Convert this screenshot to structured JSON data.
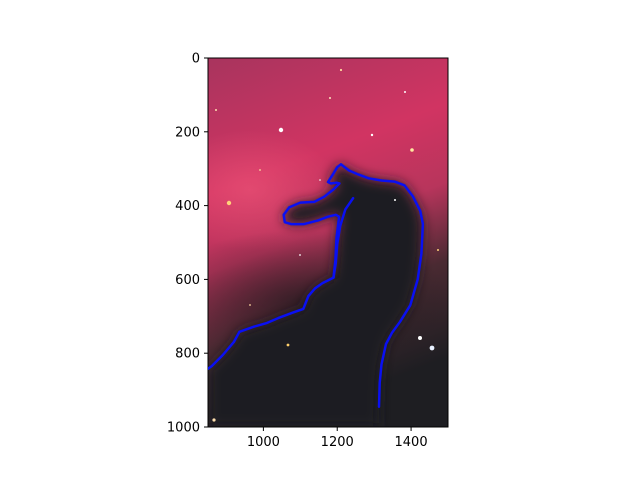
{
  "chart_data": {
    "type": "image-with-contour-overlay",
    "title": "",
    "xlabel": "",
    "ylabel": "",
    "xlim": [
      850,
      1500
    ],
    "ylim": [
      1000,
      0
    ],
    "y_inverted": true,
    "x_ticks": [
      1000,
      1200,
      1400
    ],
    "y_ticks": [
      0,
      200,
      400,
      600,
      800,
      1000
    ],
    "x_tick_labels": [
      "1000",
      "1200",
      "1400"
    ],
    "y_tick_labels": [
      "0",
      "200",
      "400",
      "600",
      "800",
      "1000"
    ],
    "grid": false,
    "legend": "none",
    "background_image": "horsehead-nebula",
    "colors": {
      "contour": "#0a10f2",
      "nebula_top": "#b7325c",
      "nebula_mid": "#d03462",
      "dark_cloud": "#1a1a20"
    },
    "series": [
      {
        "type": "line",
        "points": [
          [
            1313,
            945
          ],
          [
            1315,
            880
          ],
          [
            1320,
            830
          ],
          [
            1332,
            775
          ],
          [
            1348,
            745
          ],
          [
            1370,
            715
          ],
          [
            1398,
            670
          ],
          [
            1418,
            600
          ],
          [
            1428,
            530
          ],
          [
            1432,
            450
          ],
          [
            1425,
            415
          ],
          [
            1405,
            375
          ],
          [
            1382,
            345
          ],
          [
            1355,
            335
          ],
          [
            1320,
            332
          ],
          [
            1285,
            326
          ],
          [
            1258,
            316
          ],
          [
            1232,
            305
          ],
          [
            1210,
            288
          ],
          [
            1200,
            296
          ],
          [
            1188,
            316
          ],
          [
            1175,
            336
          ],
          [
            1183,
            340
          ],
          [
            1198,
            338
          ],
          [
            1206,
            340
          ],
          [
            1190,
            356
          ],
          [
            1165,
            376
          ],
          [
            1138,
            390
          ],
          [
            1100,
            392
          ],
          [
            1070,
            405
          ],
          [
            1055,
            425
          ],
          [
            1058,
            445
          ],
          [
            1075,
            450
          ],
          [
            1110,
            450
          ],
          [
            1148,
            440
          ],
          [
            1175,
            430
          ],
          [
            1196,
            425
          ],
          [
            1205,
            430
          ],
          [
            1198,
            488
          ],
          [
            1195,
            548
          ],
          [
            1190,
            595
          ],
          [
            1160,
            610
          ],
          [
            1140,
            624
          ],
          [
            1122,
            645
          ],
          [
            1108,
            680
          ],
          [
            1080,
            690
          ],
          [
            1040,
            705
          ],
          [
            1010,
            718
          ],
          [
            975,
            728
          ],
          [
            935,
            742
          ],
          [
            920,
            770
          ],
          [
            890,
            805
          ],
          [
            860,
            835
          ],
          [
            850,
            842
          ]
        ]
      },
      {
        "type": "line",
        "points": [
          [
            1190,
            595
          ],
          [
            1196,
            555
          ],
          [
            1200,
            505
          ],
          [
            1208,
            455
          ],
          [
            1222,
            410
          ],
          [
            1243,
            380
          ]
        ]
      }
    ]
  }
}
